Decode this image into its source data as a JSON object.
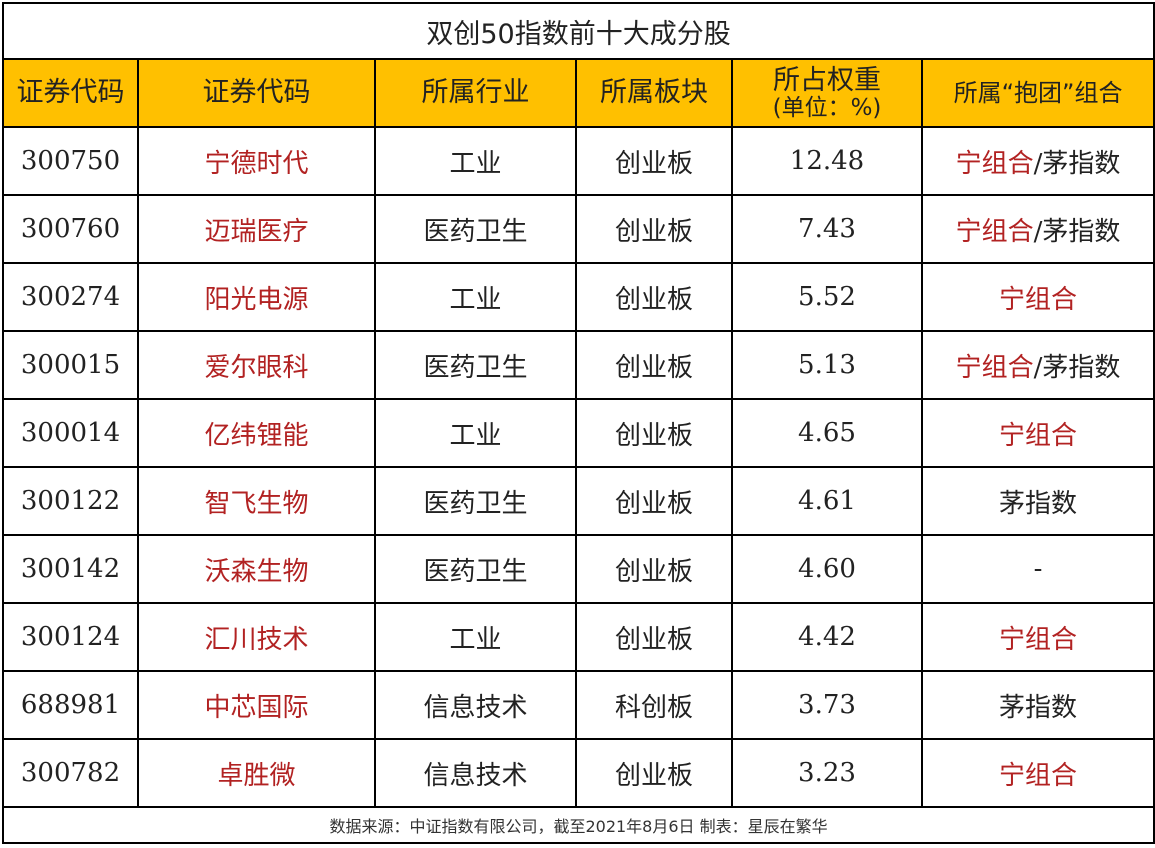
{
  "title": "双创50指数前十大成分股",
  "headers": [
    "证券代码",
    "证券代码",
    "所属行业",
    "所属板块",
    "所占权重",
    "(单位：%)",
    "所属“抱团”组合"
  ],
  "rows": [
    {
      "code": "300750",
      "name": "宁德时代",
      "industry": "工业",
      "board": "创业板",
      "weight": "12.48",
      "group": [
        {
          "text": "宁组合",
          "hl": true
        },
        {
          "text": "/茅指数",
          "hl": false
        }
      ]
    },
    {
      "code": "300760",
      "name": "迈瑞医疗",
      "industry": "医药卫生",
      "board": "创业板",
      "weight": "7.43",
      "group": [
        {
          "text": "宁组合",
          "hl": true
        },
        {
          "text": "/茅指数",
          "hl": false
        }
      ]
    },
    {
      "code": "300274",
      "name": "阳光电源",
      "industry": "工业",
      "board": "创业板",
      "weight": "5.52",
      "group": [
        {
          "text": "宁组合",
          "hl": true
        }
      ]
    },
    {
      "code": "300015",
      "name": "爱尔眼科",
      "industry": "医药卫生",
      "board": "创业板",
      "weight": "5.13",
      "group": [
        {
          "text": "宁组合",
          "hl": true
        },
        {
          "text": "/茅指数",
          "hl": false
        }
      ]
    },
    {
      "code": "300014",
      "name": "亿纬锂能",
      "industry": "工业",
      "board": "创业板",
      "weight": "4.65",
      "group": [
        {
          "text": "宁组合",
          "hl": true
        }
      ]
    },
    {
      "code": "300122",
      "name": "智飞生物",
      "industry": "医药卫生",
      "board": "创业板",
      "weight": "4.61",
      "group": [
        {
          "text": "茅指数",
          "hl": false
        }
      ]
    },
    {
      "code": "300142",
      "name": "沃森生物",
      "industry": "医药卫生",
      "board": "创业板",
      "weight": "4.60",
      "group": [
        {
          "text": "-",
          "hl": false
        }
      ]
    },
    {
      "code": "300124",
      "name": "汇川技术",
      "industry": "工业",
      "board": "创业板",
      "weight": "4.42",
      "group": [
        {
          "text": "宁组合",
          "hl": true
        }
      ]
    },
    {
      "code": "688981",
      "name": "中芯国际",
      "industry": "信息技术",
      "board": "科创板",
      "weight": "3.73",
      "group": [
        {
          "text": "茅指数",
          "hl": false
        }
      ]
    },
    {
      "code": "300782",
      "name": "卓胜微",
      "industry": "信息技术",
      "board": "创业板",
      "weight": "3.23",
      "group": [
        {
          "text": "宁组合",
          "hl": true
        }
      ]
    }
  ],
  "footer": "数据来源：中证指数有限公司，截至2021年8月6日  制表：星辰在繁华",
  "colors": {
    "header_bg": "#ffc000",
    "highlight": "#b22222"
  }
}
